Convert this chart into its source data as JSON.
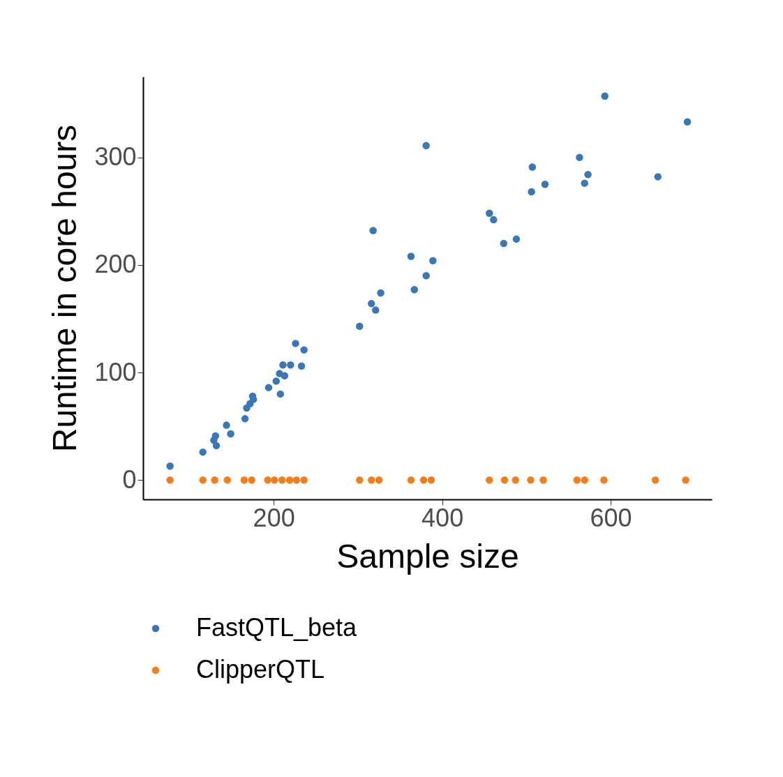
{
  "chart_data": {
    "type": "scatter",
    "xlabel": "Sample size",
    "ylabel": "Runtime in core hours",
    "xlim": [
      45,
      720
    ],
    "ylim": [
      -18,
      375
    ],
    "xticks": [
      200,
      400,
      600
    ],
    "yticks": [
      0,
      100,
      200,
      300
    ],
    "grid": false,
    "legend": "bottom",
    "marker": "circle",
    "series": [
      {
        "name": "FastQTL_beta",
        "color": "#3a78b5",
        "x": [
          77,
          116,
          129,
          131,
          132,
          144,
          149,
          166,
          168,
          172,
          175,
          176,
          194,
          203,
          207,
          208,
          211,
          213,
          220,
          226,
          233,
          236,
          302,
          316,
          318,
          321,
          327,
          363,
          367,
          381,
          381,
          389,
          456,
          461,
          473,
          488,
          506,
          507,
          522,
          563,
          569,
          573,
          593,
          656,
          691
        ],
        "values": [
          13,
          26,
          37,
          41,
          32,
          51,
          43,
          57,
          67,
          71,
          78,
          75,
          86,
          92,
          99,
          80,
          107,
          97,
          107,
          127,
          106,
          121,
          143,
          164,
          232,
          158,
          174,
          208,
          177,
          190,
          311,
          204,
          248,
          242,
          220,
          224,
          268,
          291,
          275,
          300,
          276,
          284,
          357,
          282,
          333
        ]
      },
      {
        "name": "ClipperQTL",
        "color": "#f07f1b",
        "x": [
          77,
          116,
          130,
          145,
          165,
          174,
          193,
          201,
          210,
          219,
          227,
          236,
          302,
          316,
          325,
          363,
          378,
          387,
          456,
          474,
          487,
          505,
          520,
          560,
          569,
          592,
          653,
          689
        ],
        "values": [
          0,
          0,
          0,
          0,
          0,
          0,
          0,
          0,
          0,
          0,
          0,
          0,
          0,
          0,
          0,
          0,
          0,
          0,
          0,
          0,
          0,
          0,
          0,
          0,
          0,
          0,
          0,
          0
        ]
      }
    ]
  }
}
